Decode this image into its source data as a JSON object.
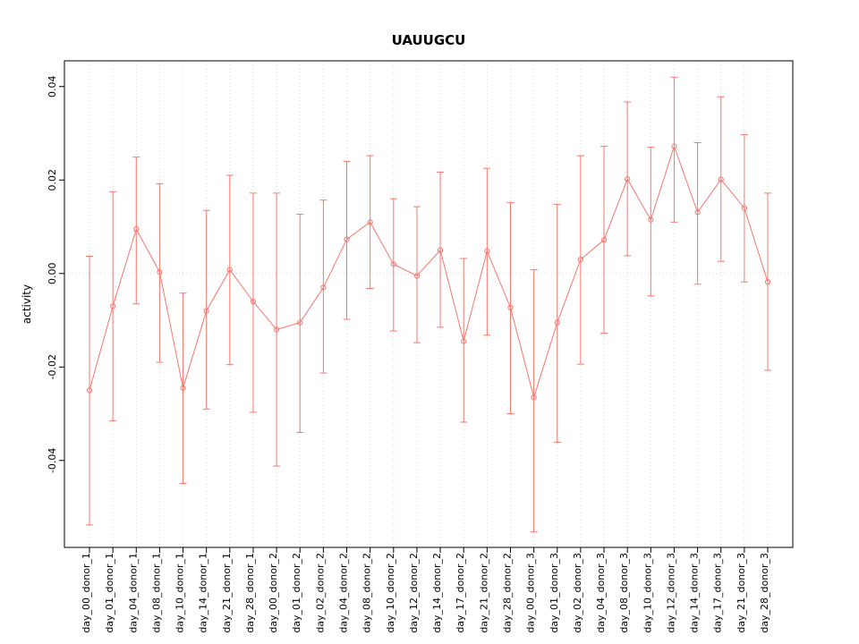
{
  "chart_data": {
    "type": "line",
    "title": "UAUUGCU",
    "xlabel": "",
    "ylabel": "activity",
    "ylim": [
      -0.0586,
      0.0455
    ],
    "yticks": [
      -0.04,
      -0.02,
      0.0,
      0.02,
      0.04
    ],
    "ytick_labels": [
      "-0.04",
      "-0.02",
      "0.00",
      "0.02",
      "0.04"
    ],
    "grid": "dotted vertical gridline at each category, dotted horizontal line at y=0",
    "legend_position": "none",
    "series_color": "#F8766D",
    "grid_color": "#d8d8d8",
    "box_color": "#000000",
    "point_style": "open-circle",
    "categories": [
      "day_00_donor_1",
      "day_01_donor_1",
      "day_04_donor_1",
      "day_08_donor_1",
      "day_10_donor_1",
      "day_14_donor_1",
      "day_21_donor_1",
      "day_28_donor_1",
      "day_00_donor_2",
      "day_01_donor_2",
      "day_02_donor_2",
      "day_04_donor_2",
      "day_08_donor_2",
      "day_10_donor_2",
      "day_12_donor_2",
      "day_14_donor_2",
      "day_17_donor_2",
      "day_21_donor_2",
      "day_28_donor_2",
      "day_00_donor_3",
      "day_01_donor_3",
      "day_02_donor_3",
      "day_04_donor_3",
      "day_08_donor_3",
      "day_10_donor_3",
      "day_12_donor_3",
      "day_14_donor_3",
      "day_17_donor_3",
      "day_21_donor_3",
      "day_28_donor_3"
    ],
    "series": [
      {
        "name": "activity",
        "values": [
          -0.025,
          -0.007,
          0.0095,
          0.0003,
          -0.0245,
          -0.008,
          0.0008,
          -0.006,
          -0.012,
          -0.0105,
          -0.003,
          0.0073,
          0.011,
          0.002,
          -0.0005,
          0.005,
          -0.0145,
          0.0048,
          -0.0073,
          -0.0265,
          -0.0105,
          0.003,
          0.0072,
          0.0202,
          0.0115,
          0.0272,
          0.0131,
          0.0201,
          0.014,
          -0.0018
        ],
        "error_high": [
          0.0037,
          0.0175,
          0.0249,
          0.0192,
          -0.0042,
          0.0135,
          0.021,
          0.0172,
          0.0172,
          0.0127,
          0.0157,
          0.024,
          0.0252,
          0.016,
          0.0143,
          0.0217,
          0.0032,
          0.0225,
          0.0152,
          0.0008,
          0.0148,
          0.0252,
          0.0272,
          0.0367,
          0.027,
          0.042,
          0.028,
          0.0378,
          0.0297,
          0.0172
        ],
        "error_low": [
          -0.0538,
          -0.0315,
          -0.0065,
          -0.019,
          -0.0449,
          -0.029,
          -0.0195,
          -0.0297,
          -0.0412,
          -0.034,
          -0.0213,
          -0.0098,
          -0.0032,
          -0.0123,
          -0.0148,
          -0.0115,
          -0.0318,
          -0.0132,
          -0.03,
          -0.0553,
          -0.0361,
          -0.0194,
          -0.0128,
          0.0038,
          -0.0048,
          0.011,
          -0.0023,
          0.0026,
          -0.0018,
          -0.0207
        ]
      }
    ]
  }
}
